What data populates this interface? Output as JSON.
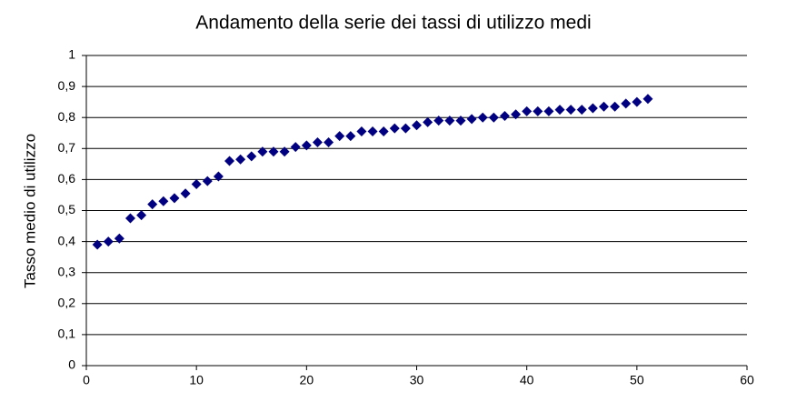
{
  "chart_data": {
    "type": "scatter",
    "title": "Andamento della serie dei tassi di utilizzo medi",
    "y_label": "Tasso medio di utilizzo",
    "color": "#000080",
    "grid": true,
    "xlim": [
      0,
      60
    ],
    "xticks": [
      0,
      10,
      20,
      30,
      40,
      50,
      60
    ],
    "ylim": [
      0,
      1
    ],
    "yticks": [
      0,
      {
        "value": 0.1,
        "label": "0,1"
      },
      {
        "value": 0.2,
        "label": "0,2"
      },
      {
        "value": 0.3,
        "label": "0,3"
      },
      {
        "value": 0.4,
        "label": "0,4"
      },
      {
        "value": 0.5,
        "label": "0,5"
      },
      {
        "value": 0.6,
        "label": "0,6"
      },
      {
        "value": 0.7,
        "label": "0,7"
      },
      {
        "value": 0.8,
        "label": "0,8"
      },
      {
        "value": 0.9,
        "label": "0,9"
      },
      1
    ],
    "x": [
      1,
      2,
      3,
      4,
      5,
      6,
      7,
      8,
      9,
      10,
      11,
      12,
      13,
      14,
      15,
      16,
      17,
      18,
      19,
      20,
      21,
      22,
      23,
      24,
      25,
      26,
      27,
      28,
      29,
      30,
      31,
      32,
      33,
      34,
      35,
      36,
      37,
      38,
      39,
      40,
      41,
      42,
      43,
      44,
      45,
      46,
      47,
      48,
      49,
      50,
      51
    ],
    "values": [
      0.39,
      0.4,
      0.41,
      0.475,
      0.485,
      0.52,
      0.53,
      0.54,
      0.555,
      0.585,
      0.595,
      0.61,
      0.66,
      0.665,
      0.675,
      0.69,
      0.69,
      0.69,
      0.705,
      0.71,
      0.72,
      0.72,
      0.74,
      0.74,
      0.755,
      0.755,
      0.755,
      0.765,
      0.765,
      0.775,
      0.785,
      0.79,
      0.79,
      0.79,
      0.795,
      0.8,
      0.8,
      0.805,
      0.81,
      0.82,
      0.82,
      0.82,
      0.825,
      0.825,
      0.825,
      0.83,
      0.835,
      0.835,
      0.845,
      0.85,
      0.86
    ]
  }
}
